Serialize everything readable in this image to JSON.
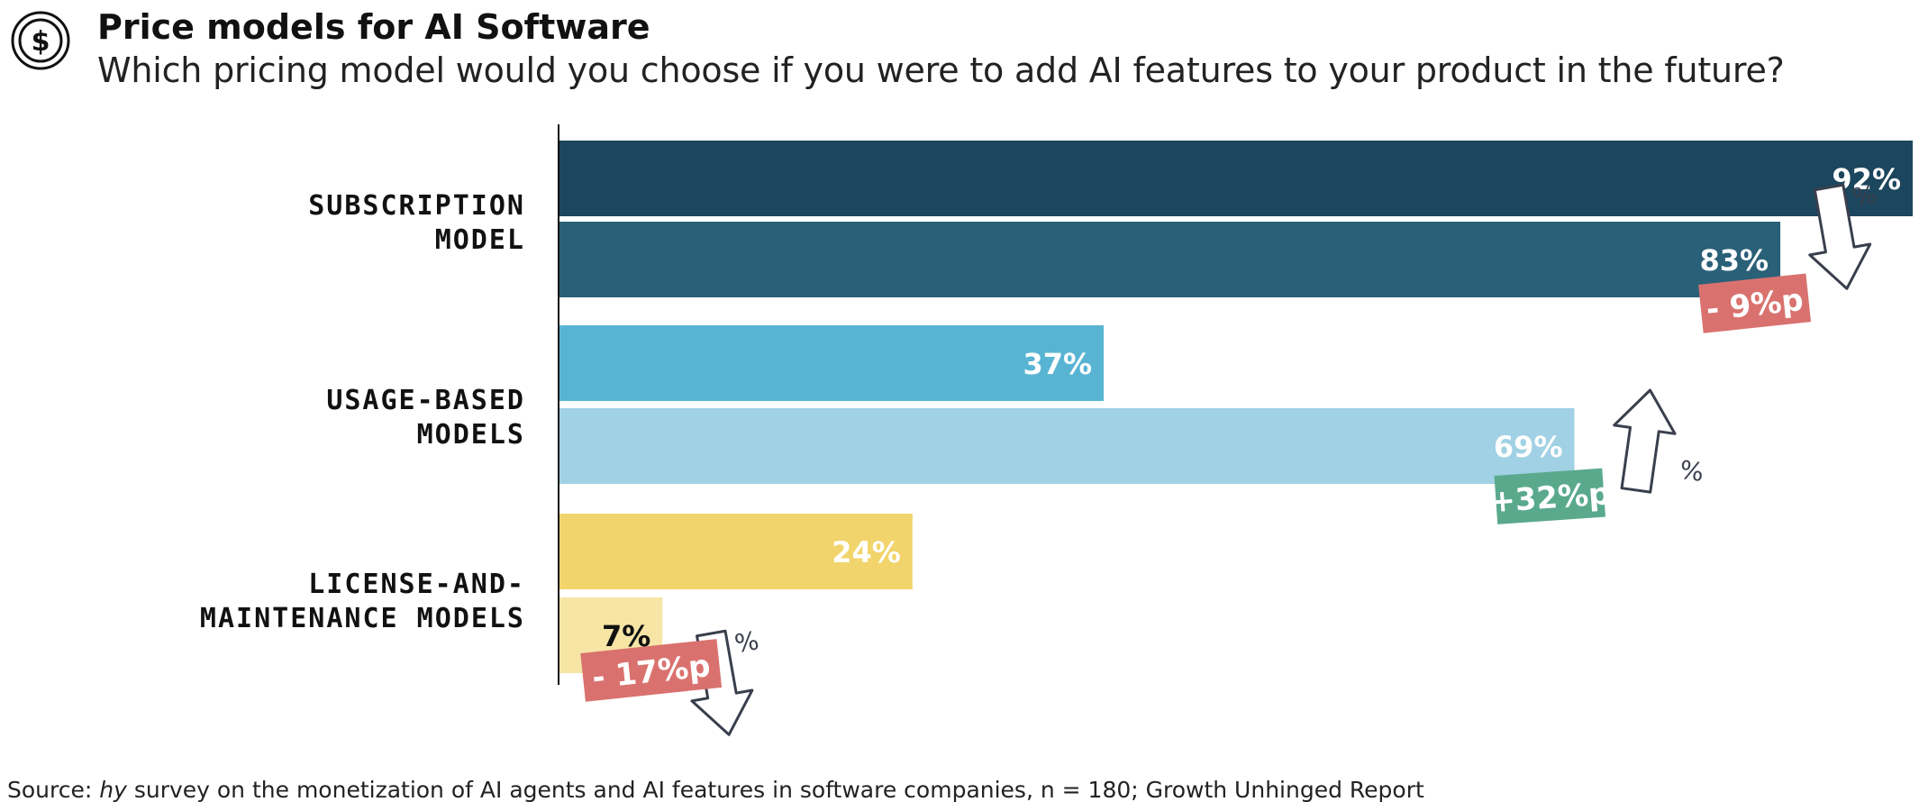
{
  "header": {
    "title": "Price models for AI Software",
    "subtitle": "Which pricing model would you choose if you were to add AI features to your product in the future?",
    "icon": "dollar-coin-icon"
  },
  "source": {
    "prefix": "Source: ",
    "italic": "hy",
    "text": " survey on the monetization of AI agents and AI features in software companies, n = 180;  Growth Unhinged Report"
  },
  "chart_data": {
    "type": "bar",
    "orientation": "horizontal",
    "xlim": [
      0,
      92
    ],
    "categories": [
      {
        "lines": [
          "SUBSCRIPTION",
          "MODEL"
        ],
        "bars": [
          {
            "value": 92,
            "label": "92%",
            "color": "#1c465d",
            "label_color": "#ffffff"
          },
          {
            "value": 83,
            "label": "83%",
            "color": "#2a6078",
            "label_color": "#ffffff"
          }
        ],
        "change": {
          "label": "- 9%p",
          "direction": "down",
          "color": "#d9726f"
        }
      },
      {
        "lines": [
          "USAGE-BASED",
          "MODELS"
        ],
        "bars": [
          {
            "value": 37,
            "label": "37%",
            "color": "#59b4d3",
            "label_color": "#ffffff"
          },
          {
            "value": 69,
            "label": "69%",
            "color": "#a1d1e4",
            "label_color": "#ffffff"
          }
        ],
        "change": {
          "label": "+32%p",
          "direction": "up",
          "color": "#5aa98d"
        }
      },
      {
        "lines": [
          "LICENSE-AND-",
          "MAINTENANCE MODELS"
        ],
        "bars": [
          {
            "value": 24,
            "label": "24%",
            "color": "#f1d46b",
            "label_color": "#ffffff"
          },
          {
            "value": 7,
            "label": "7%",
            "color": "#f7e5a6",
            "label_color": "#111111"
          }
        ],
        "change": {
          "label": "- 17%p",
          "direction": "down",
          "color": "#d9726f"
        }
      }
    ],
    "arrow_symbol": "%"
  }
}
